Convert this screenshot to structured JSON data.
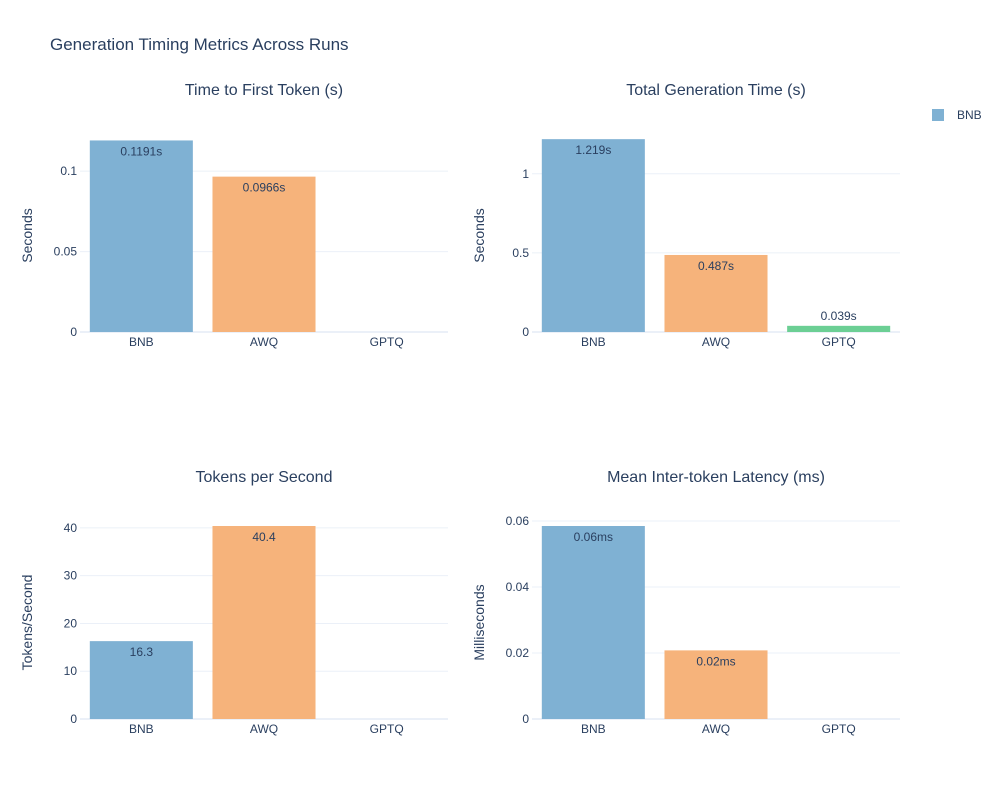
{
  "title": "Generation Timing Metrics Across Runs",
  "legend": {
    "entries": [
      "BNB"
    ],
    "placement": "top-right",
    "color": "#7fb1d3"
  },
  "colors": {
    "BNB": "#7fb1d3",
    "AWQ": "#f6b37b",
    "GPTQ": "#6ccf94"
  },
  "chart_data": [
    {
      "type": "bar",
      "title": "Time to First Token (s)",
      "ylabel": "Seconds",
      "categories": [
        "BNB",
        "AWQ",
        "GPTQ"
      ],
      "values": [
        0.1191,
        0.0966,
        0
      ],
      "labels": [
        "0.1191s",
        "0.0966s",
        ""
      ],
      "ylim": [
        0,
        0.12
      ],
      "yticks": [
        0,
        0.05,
        0.1
      ],
      "yticklabels": [
        "0",
        "0.05",
        "0.1"
      ]
    },
    {
      "type": "bar",
      "title": "Total Generation Time (s)",
      "ylabel": "Seconds",
      "categories": [
        "BNB",
        "AWQ",
        "GPTQ"
      ],
      "values": [
        1.219,
        0.487,
        0.039
      ],
      "labels": [
        "1.219s",
        "0.487s",
        "0.039s"
      ],
      "ylim": [
        0,
        1.22
      ],
      "yticks": [
        0,
        0.5,
        1
      ],
      "yticklabels": [
        "0",
        "0.5",
        "1"
      ]
    },
    {
      "type": "bar",
      "title": "Tokens per Second",
      "ylabel": "Tokens/Second",
      "categories": [
        "BNB",
        "AWQ",
        "GPTQ"
      ],
      "values": [
        16.3,
        40.4,
        0
      ],
      "labels": [
        "16.3",
        "40.4",
        ""
      ],
      "ylim": [
        0,
        40.4
      ],
      "yticks": [
        0,
        10,
        20,
        30,
        40
      ],
      "yticklabels": [
        "0",
        "10",
        "20",
        "30",
        "40"
      ]
    },
    {
      "type": "bar",
      "title": "Mean Inter-token Latency (ms)",
      "ylabel": "Milliseconds",
      "categories": [
        "BNB",
        "AWQ",
        "GPTQ"
      ],
      "values": [
        0.0585,
        0.0208,
        0
      ],
      "labels": [
        "0.06ms",
        "0.02ms",
        ""
      ],
      "ylim": [
        0,
        0.0585
      ],
      "yticks": [
        0,
        0.02,
        0.04,
        0.06
      ],
      "yticklabels": [
        "0",
        "0.02",
        "0.04",
        "0.06"
      ]
    }
  ]
}
